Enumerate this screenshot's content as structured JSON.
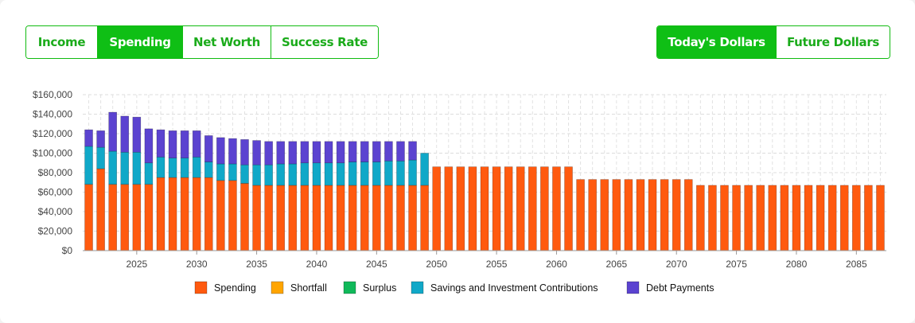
{
  "view_tabs": [
    {
      "label": "Income",
      "active": false
    },
    {
      "label": "Spending",
      "active": true
    },
    {
      "label": "Net Worth",
      "active": false
    },
    {
      "label": "Success Rate",
      "active": false
    }
  ],
  "dollar_tabs": [
    {
      "label": "Today's Dollars",
      "active": true
    },
    {
      "label": "Future Dollars",
      "active": false
    }
  ],
  "colors": {
    "accent": "#0fbf15",
    "spending": "#ff5a0f",
    "shortfall": "#ffa500",
    "surplus": "#10b95a",
    "savings": "#10a8c8",
    "debt": "#5b43d0"
  },
  "chart_data": {
    "type": "bar",
    "stacked": true,
    "x": [
      2021,
      2022,
      2023,
      2024,
      2025,
      2026,
      2027,
      2028,
      2029,
      2030,
      2031,
      2032,
      2033,
      2034,
      2035,
      2036,
      2037,
      2038,
      2039,
      2040,
      2041,
      2042,
      2043,
      2044,
      2045,
      2046,
      2047,
      2048,
      2049,
      2050,
      2051,
      2052,
      2053,
      2054,
      2055,
      2056,
      2057,
      2058,
      2059,
      2060,
      2061,
      2062,
      2063,
      2064,
      2065,
      2066,
      2067,
      2068,
      2069,
      2070,
      2071,
      2072,
      2073,
      2074,
      2075,
      2076,
      2077,
      2078,
      2079,
      2080,
      2081,
      2082,
      2083,
      2084,
      2085,
      2086,
      2087
    ],
    "xticks": [
      "2025",
      "2030",
      "2035",
      "2040",
      "2045",
      "2050",
      "2055",
      "2060",
      "2065",
      "2070",
      "2075",
      "2080",
      "2085"
    ],
    "xtick_values": [
      2025,
      2030,
      2035,
      2040,
      2045,
      2050,
      2055,
      2060,
      2065,
      2070,
      2075,
      2080,
      2085
    ],
    "yticks": [
      "$0",
      "$20,000",
      "$40,000",
      "$60,000",
      "$80,000",
      "$100,000",
      "$120,000",
      "$140,000",
      "$160,000"
    ],
    "ylim": [
      0,
      160000
    ],
    "grid": true,
    "legend_position": "bottom",
    "series": [
      {
        "name": "Spending",
        "color_key": "spending",
        "values": [
          68000,
          84000,
          68000,
          68000,
          68000,
          68000,
          75000,
          75000,
          75000,
          75000,
          75000,
          72000,
          72000,
          69000,
          67000,
          67000,
          67000,
          67000,
          67000,
          67000,
          67000,
          67000,
          67000,
          67000,
          67000,
          67000,
          67000,
          67000,
          67000,
          86000,
          86000,
          86000,
          86000,
          86000,
          86000,
          86000,
          86000,
          86000,
          86000,
          86000,
          86000,
          73000,
          73000,
          73000,
          73000,
          73000,
          73000,
          73000,
          73000,
          73000,
          73000,
          67000,
          67000,
          67000,
          67000,
          67000,
          67000,
          67000,
          67000,
          67000,
          67000,
          67000,
          67000,
          67000,
          67000,
          67000,
          67000
        ]
      },
      {
        "name": "Shortfall",
        "color_key": "shortfall",
        "values": [
          0,
          0,
          0,
          0,
          0,
          0,
          0,
          0,
          0,
          0,
          0,
          0,
          0,
          0,
          0,
          0,
          0,
          0,
          0,
          0,
          0,
          0,
          0,
          0,
          0,
          0,
          0,
          0,
          0,
          0,
          0,
          0,
          0,
          0,
          0,
          0,
          0,
          0,
          0,
          0,
          0,
          0,
          0,
          0,
          0,
          0,
          0,
          0,
          0,
          0,
          0,
          0,
          0,
          0,
          0,
          0,
          0,
          0,
          0,
          0,
          0,
          0,
          0,
          0,
          0,
          0,
          0
        ]
      },
      {
        "name": "Surplus",
        "color_key": "surplus",
        "values": [
          0,
          0,
          0,
          0,
          0,
          0,
          0,
          0,
          0,
          0,
          0,
          0,
          0,
          0,
          0,
          0,
          0,
          0,
          0,
          0,
          0,
          0,
          0,
          0,
          0,
          0,
          0,
          0,
          0,
          0,
          0,
          0,
          0,
          0,
          0,
          0,
          0,
          0,
          0,
          0,
          0,
          0,
          0,
          0,
          0,
          0,
          0,
          0,
          0,
          0,
          0,
          0,
          0,
          0,
          0,
          0,
          0,
          0,
          0,
          0,
          0,
          0,
          0,
          0,
          0,
          0,
          0
        ]
      },
      {
        "name": "Savings and Investment Contributions",
        "color_key": "savings",
        "values": [
          39000,
          22000,
          34000,
          33000,
          33000,
          22000,
          21000,
          20000,
          20000,
          21000,
          16000,
          17000,
          17000,
          19000,
          21000,
          21000,
          22000,
          22000,
          23000,
          23000,
          23000,
          23000,
          24000,
          24000,
          24000,
          25000,
          25000,
          26000,
          33000,
          0,
          0,
          0,
          0,
          0,
          0,
          0,
          0,
          0,
          0,
          0,
          0,
          0,
          0,
          0,
          0,
          0,
          0,
          0,
          0,
          0,
          0,
          0,
          0,
          0,
          0,
          0,
          0,
          0,
          0,
          0,
          0,
          0,
          0,
          0,
          0,
          0,
          0
        ]
      },
      {
        "name": "Debt Payments",
        "color_key": "debt",
        "values": [
          17000,
          17000,
          40000,
          37000,
          36000,
          35000,
          28000,
          28000,
          28000,
          27000,
          27000,
          27000,
          26000,
          26000,
          25000,
          24000,
          23000,
          23000,
          22000,
          22000,
          22000,
          22000,
          21000,
          21000,
          21000,
          20000,
          20000,
          19000,
          0,
          0,
          0,
          0,
          0,
          0,
          0,
          0,
          0,
          0,
          0,
          0,
          0,
          0,
          0,
          0,
          0,
          0,
          0,
          0,
          0,
          0,
          0,
          0,
          0,
          0,
          0,
          0,
          0,
          0,
          0,
          0,
          0,
          0,
          0,
          0,
          0,
          0,
          0
        ]
      }
    ],
    "totals_note": ""
  }
}
